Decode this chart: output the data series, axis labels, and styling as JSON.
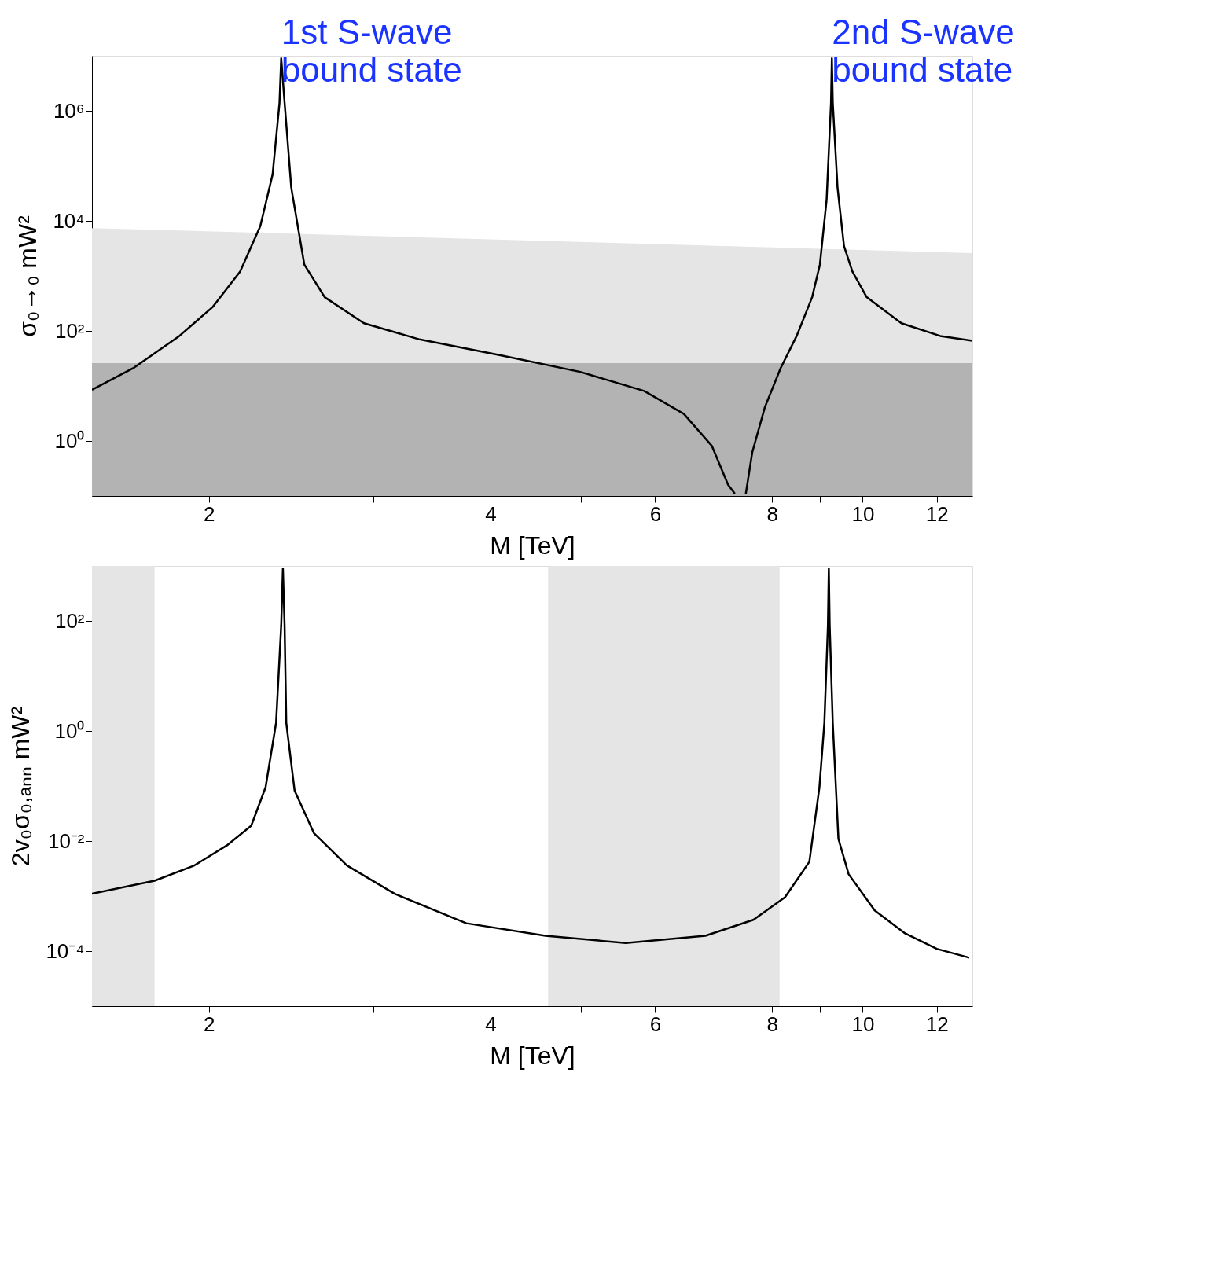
{
  "chart_data": [
    {
      "type": "line",
      "log": "xy",
      "xlabel": "M [TeV]",
      "ylabel": "σ₀→₀ mW²",
      "xlim": [
        1.5,
        13.1
      ],
      "ylim": [
        0.1,
        10000000
      ],
      "xticks": [
        2,
        {
          "value": 3,
          "label": null
        },
        4,
        {
          "value": 5,
          "label": null
        },
        6,
        {
          "value": 7,
          "label": null
        },
        8,
        {
          "value": 9,
          "label": null
        },
        10,
        {
          "value": 11,
          "label": null
        },
        12
      ],
      "yticks": [
        {
          "value": 1,
          "label": "10⁰"
        },
        {
          "value": 100,
          "label": "10²"
        },
        {
          "value": 10000,
          "label": "10⁴"
        },
        {
          "value": 1000000,
          "label": "10⁶"
        }
      ],
      "grid": false,
      "bands": [
        {
          "axis": "y",
          "from": 0.1,
          "to": 26,
          "color": "#b3b3b3"
        }
      ],
      "annotations": [
        {
          "text": "1st S-wave\nbound state",
          "x": 2.39,
          "y": 10000000
        },
        {
          "text": "2nd S-wave\nbound state",
          "x": 9.27,
          "y": 10000000
        }
      ],
      "series": [
        {
          "type": "area",
          "color": "#e5e5e5",
          "x": [
            1.5,
            13.1
          ],
          "values": [
            7400,
            2600
          ]
        },
        {
          "color": "#000000",
          "x": [
            1.5,
            1.66,
            1.86,
            2.02,
            2.16,
            2.27,
            2.34,
            2.38,
            2.39,
            2.41,
            2.45,
            2.53,
            2.66,
            2.93,
            3.36,
            4.1,
            4.99,
            5.84,
            6.44,
            6.9,
            7.18,
            7.3,
            7.4,
            7.5,
            7.62,
            7.86,
            8.17,
            8.5,
            8.83,
            9.0,
            9.15,
            9.25,
            9.27,
            9.29,
            9.4,
            9.55,
            9.75,
            10.1,
            11.0,
            12.1,
            13.1
          ],
          "values": [
            8.5,
            21,
            81,
            274,
            1200,
            8000,
            70000,
            1400000,
            9000000,
            1400000,
            40000,
            1600,
            410,
            138,
            70,
            36,
            18,
            8.1,
            3.1,
            0.81,
            0.16,
            0.11,
            null,
            0.11,
            0.62,
            4.1,
            21,
            81,
            410,
            1600,
            24000,
            1400000,
            9000000,
            1400000,
            40000,
            3500,
            1200,
            410,
            138,
            81,
            66
          ]
        }
      ]
    },
    {
      "type": "line",
      "log": "xy",
      "xlabel": "M [TeV]",
      "ylabel": "2v₀σ₀,ₐₙₙ mW²",
      "xlim": [
        1.5,
        13.1
      ],
      "ylim": [
        1e-05,
        1000
      ],
      "xticks": [
        2,
        {
          "value": 3,
          "label": null
        },
        4,
        {
          "value": 5,
          "label": null
        },
        6,
        {
          "value": 7,
          "label": null
        },
        8,
        {
          "value": 9,
          "label": null
        },
        10,
        {
          "value": 11,
          "label": null
        },
        12
      ],
      "yticks": [
        {
          "value": 0.0001,
          "label": "10⁻⁴"
        },
        {
          "value": 0.01,
          "label": "10⁻²"
        },
        {
          "value": 1,
          "label": "10⁰"
        },
        {
          "value": 100,
          "label": "10²"
        }
      ],
      "grid": false,
      "bands": [
        {
          "axis": "x",
          "from": 1.5,
          "to": 1.75,
          "color": "#e5e5e5"
        },
        {
          "axis": "x",
          "from": 4.61,
          "to": 8.15,
          "color": "#e5e5e5"
        }
      ],
      "series": [
        {
          "color": "#000000",
          "x": [
            1.5,
            1.75,
            1.93,
            2.09,
            2.22,
            2.3,
            2.36,
            2.39,
            2.4,
            2.41,
            2.42,
            2.47,
            2.59,
            2.81,
            3.16,
            3.77,
            4.58,
            5.58,
            6.79,
            7.64,
            8.26,
            8.77,
            8.99,
            9.1,
            9.18,
            9.2,
            9.22,
            9.29,
            9.42,
            9.66,
            10.3,
            11.1,
            12.0,
            13.0
          ],
          "values": [
            0.0011,
            0.0019,
            0.0036,
            0.0083,
            0.019,
            0.095,
            1.4,
            83,
            900,
            83,
            1.4,
            0.083,
            0.014,
            0.0036,
            0.0011,
            0.00032,
            0.00019,
            0.00014,
            0.00019,
            0.00037,
            0.00095,
            0.0042,
            0.095,
            1.4,
            83,
            900,
            83,
            1.4,
            0.011,
            0.0025,
            0.00055,
            0.00021,
            0.00011,
            7.6e-05
          ]
        }
      ]
    }
  ]
}
